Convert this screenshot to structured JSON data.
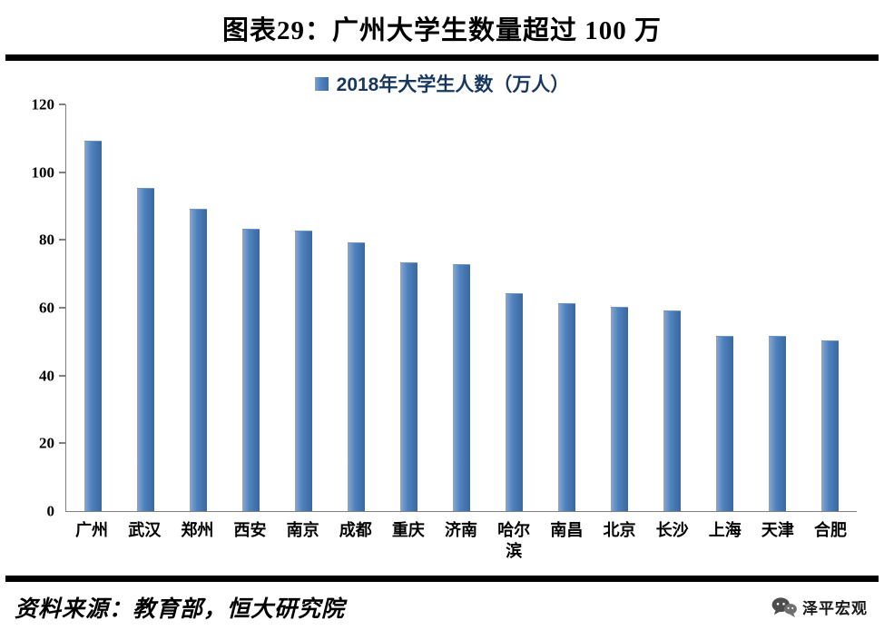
{
  "header": {
    "title": "图表29：广州大学生数量超过 100 万"
  },
  "chart_data": {
    "type": "bar",
    "title": "图表29：广州大学生数量超过 100 万",
    "legend": "2018年大学生人数（万人）",
    "legend_position": "top",
    "categories": [
      "广州",
      "武汉",
      "郑州",
      "西安",
      "南京",
      "成都",
      "重庆",
      "济南",
      "哈尔滨",
      "南昌",
      "北京",
      "长沙",
      "上海",
      "天津",
      "合肥"
    ],
    "values": [
      109,
      95,
      89,
      83,
      82.5,
      79,
      73,
      72.5,
      64,
      61,
      60,
      59,
      51.5,
      51.5,
      50
    ],
    "xlabel": "",
    "ylabel": "",
    "ylim": [
      0,
      120
    ],
    "ytick_step": 20,
    "grid": false,
    "bar_color": "#4F81BD",
    "legend_text_color": "#17375E"
  },
  "footer": {
    "source": "资料来源：教育部，恒大研究院",
    "logo_text": "泽平宏观"
  }
}
